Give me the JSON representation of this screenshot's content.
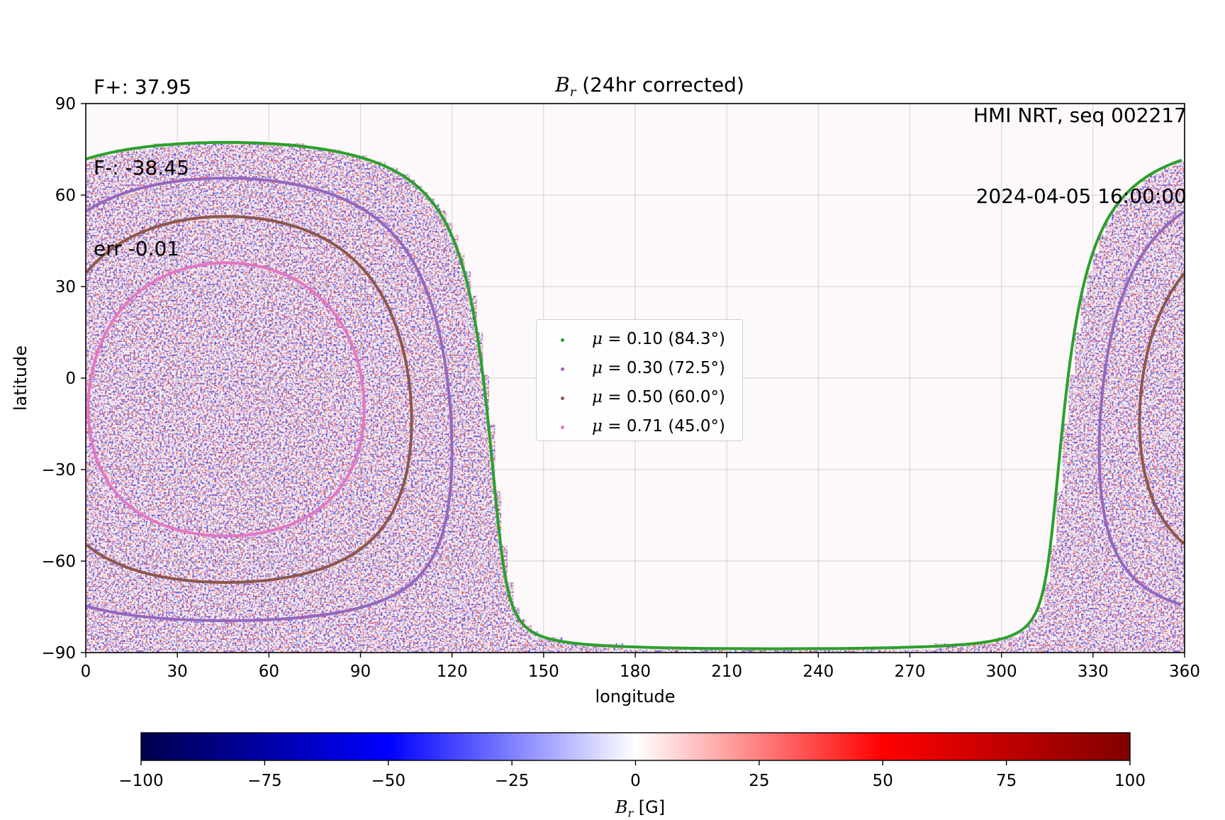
{
  "stats": {
    "f_plus": "F+: 37.95",
    "f_minus": "F-: -38.45",
    "err": "err -0.01"
  },
  "info": {
    "source": "HMI NRT, seq 002217",
    "timestamp": "2024-04-05 16:00:00"
  },
  "chart_data": {
    "type": "heatmap",
    "title_var": "B",
    "title_sub": "r",
    "title_rest": " (24hr corrected)",
    "xlabel": "longitude",
    "ylabel": "latitude",
    "xlim": [
      0,
      360
    ],
    "ylim": [
      -90,
      90
    ],
    "xticks": [
      "0",
      "30",
      "60",
      "90",
      "120",
      "150",
      "180",
      "210",
      "240",
      "270",
      "300",
      "330",
      "360"
    ],
    "yticks": [
      "90",
      "60",
      "30",
      "0",
      "−30",
      "−60",
      "−90"
    ],
    "grid": true,
    "legend_position": "center",
    "disk_center": {
      "lon": 46,
      "lat": -7
    },
    "series": [
      {
        "name": "μ = 0.10 (84.3°)",
        "label_mu": "μ",
        "label_rest": " = 0.10 (84.3°)",
        "mu": 0.1,
        "angle_deg": 84.3,
        "color": "#2ca02c"
      },
      {
        "name": "μ = 0.30 (72.5°)",
        "label_mu": "μ",
        "label_rest": " = 0.30 (72.5°)",
        "mu": 0.3,
        "angle_deg": 72.5,
        "color": "#9467bd"
      },
      {
        "name": "μ = 0.50 (60.0°)",
        "label_mu": "μ",
        "label_rest": " = 0.50 (60.0°)",
        "mu": 0.5,
        "angle_deg": 60.0,
        "color": "#8c564b"
      },
      {
        "name": "μ = 0.71 (45.0°)",
        "label_mu": "μ",
        "label_rest": " = 0.71 (45.0°)",
        "mu": 0.71,
        "angle_deg": 45.0,
        "color": "#e377c2"
      }
    ],
    "colorbar": {
      "label_var": "B",
      "label_sub": "r",
      "label_unit": " [G]",
      "vmin": -100,
      "vmax": 100,
      "ticks": [
        "−100",
        "−75",
        "−50",
        "−25",
        "0",
        "25",
        "50",
        "75",
        "100"
      ],
      "colormap_stops": [
        "#00004c",
        "#0000ff",
        "#ffffff",
        "#ff0000",
        "#800000"
      ]
    }
  }
}
